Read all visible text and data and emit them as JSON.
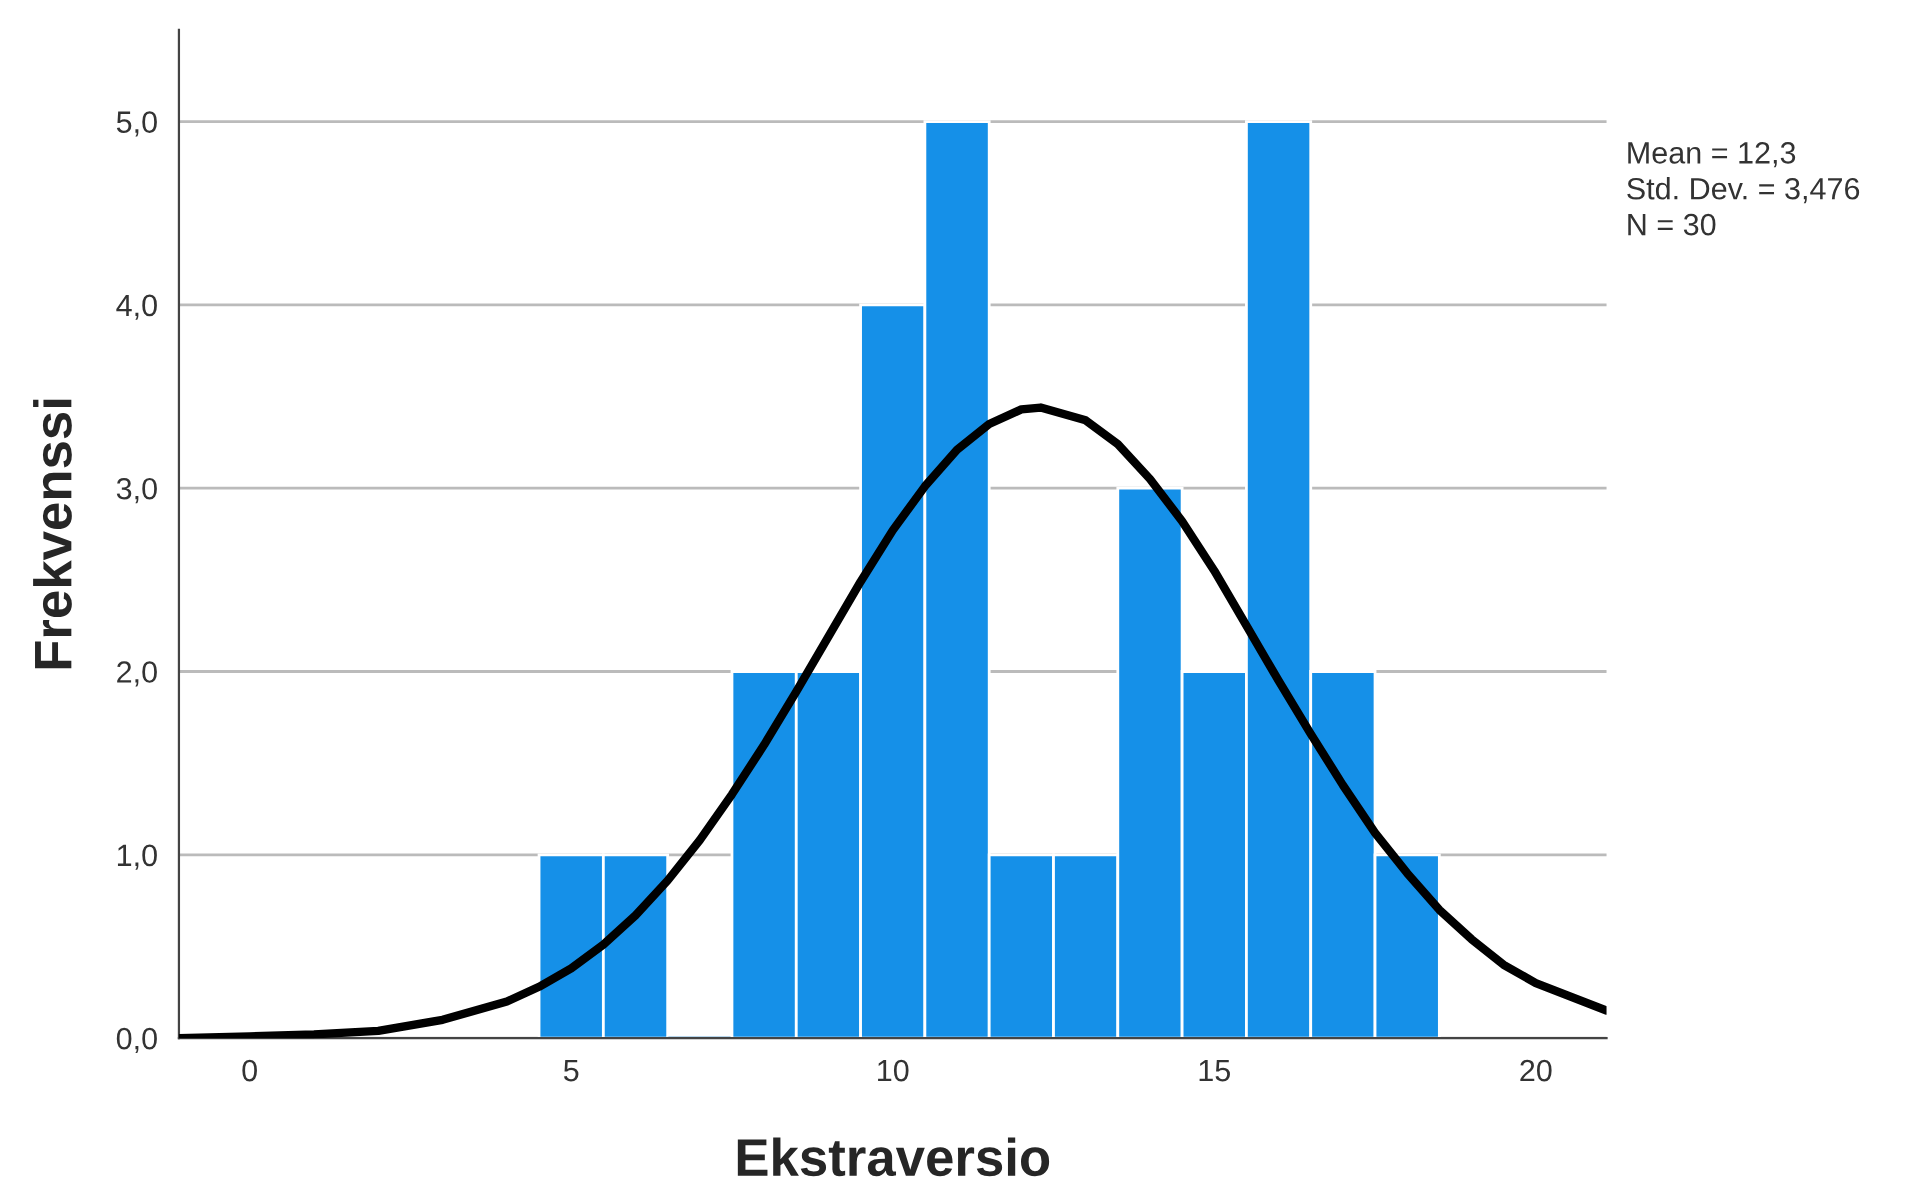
{
  "chart_data": {
    "type": "histogram",
    "xlabel": "Ekstraversio",
    "ylabel": "Frekvenssi",
    "bins": [
      4.5,
      5.5,
      6.5,
      7.5,
      8.5,
      9.5,
      10.5,
      11.5,
      12.5,
      13.5,
      14.5,
      15.5,
      16.5,
      17.5,
      18.5
    ],
    "values": [
      1,
      1,
      0,
      2,
      2,
      4,
      5,
      1,
      1,
      3,
      2,
      5,
      2,
      1
    ],
    "color": "#1590e8",
    "series": [
      {
        "type": "line",
        "color": "#000000",
        "x": [
          -1.1,
          0,
          1,
          2,
          3,
          4,
          4.5,
          5,
          5.5,
          6,
          6.5,
          7,
          7.5,
          8,
          8.5,
          9,
          9.5,
          10,
          10.5,
          11,
          11.5,
          12,
          12.3,
          13,
          13.5,
          14,
          14.5,
          15,
          15.5,
          16,
          16.5,
          17,
          17.5,
          18,
          18.5,
          19,
          19.5,
          20,
          21.1
        ],
        "values": [
          0.0,
          0.01,
          0.02,
          0.04,
          0.1,
          0.2,
          0.28,
          0.38,
          0.51,
          0.67,
          0.86,
          1.08,
          1.33,
          1.6,
          1.89,
          2.19,
          2.49,
          2.77,
          3.01,
          3.21,
          3.35,
          3.43,
          3.44,
          3.37,
          3.24,
          3.05,
          2.82,
          2.55,
          2.25,
          1.95,
          1.66,
          1.38,
          1.12,
          0.9,
          0.7,
          0.54,
          0.4,
          0.3,
          0.15
        ]
      }
    ],
    "xlim": [
      -1.1,
      21.1
    ],
    "ylim": [
      0,
      5.5
    ],
    "xticks": [
      0,
      5,
      10,
      15,
      20
    ],
    "yticks": [
      {
        "value": 0,
        "label": "0,0"
      },
      {
        "value": 1,
        "label": "1,0"
      },
      {
        "value": 2,
        "label": "2,0"
      },
      {
        "value": 3,
        "label": "3,0"
      },
      {
        "value": 4,
        "label": "4,0"
      },
      {
        "value": 5,
        "label": "5,0"
      }
    ],
    "grid": "y",
    "annotations": [
      "Mean = 12,3",
      "Std. Dev. = 3,476",
      "N = 30"
    ]
  }
}
